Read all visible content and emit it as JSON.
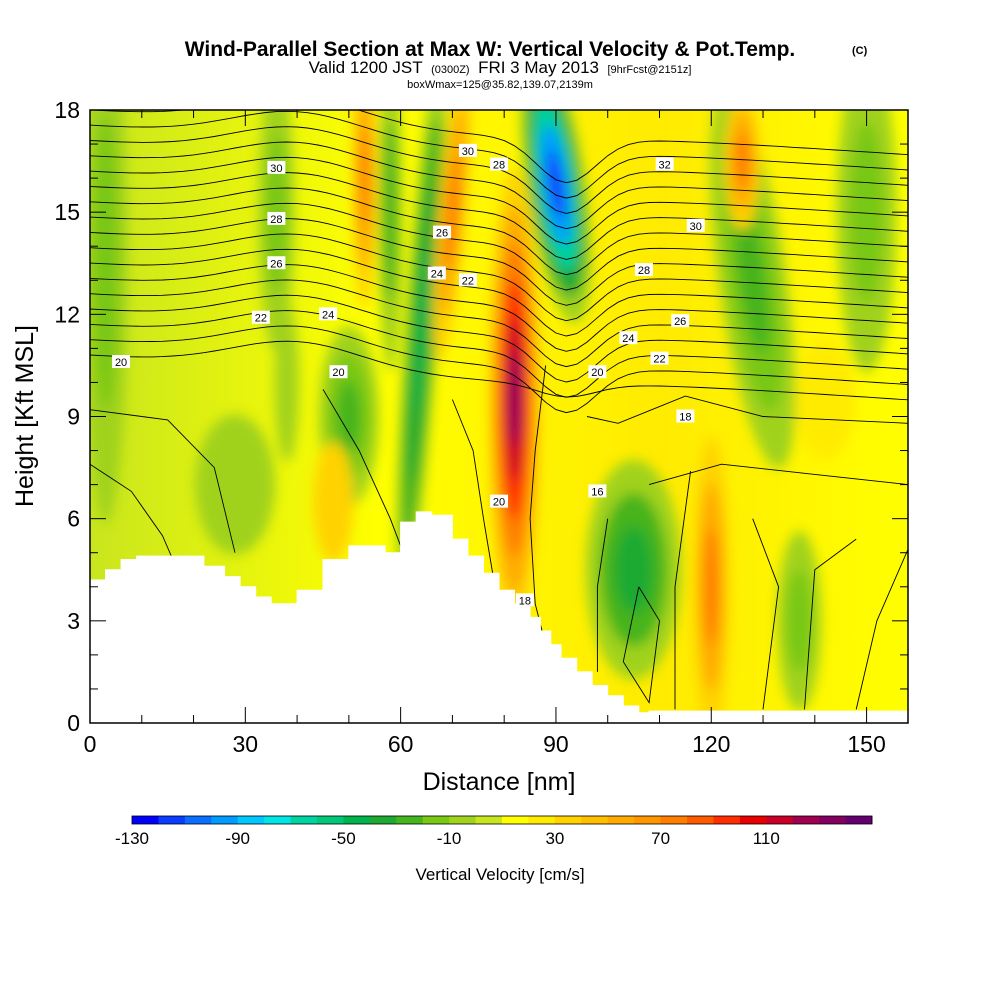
{
  "title": {
    "main": "Wind-Parallel Section at Max W: Vertical Velocity & Pot.Temp.",
    "copyright": "(C)",
    "valid_prefix": "Valid 1200 JST",
    "utc": "(0300Z)",
    "valid_date": "FRI 3 May 2013",
    "forecast": "[9hrFcst@2151z]",
    "box": "boxWmax=125@35.82,139.07,2139m"
  },
  "colorbar": {
    "label": "Vertical Velocity [cm/s]",
    "tick_labels": [
      "-130",
      "-90",
      "-50",
      "-10",
      "30",
      "70",
      "110"
    ],
    "colors": [
      "#0000ff",
      "#0a3cff",
      "#0a6eff",
      "#009bff",
      "#00c8ff",
      "#00e6e6",
      "#00d2a0",
      "#00c878",
      "#00b44b",
      "#1eaa32",
      "#46b41e",
      "#78c814",
      "#a0d21e",
      "#c8e61e",
      "#ffff00",
      "#ffeb00",
      "#ffd200",
      "#ffbe00",
      "#ffaa00",
      "#ff9600",
      "#ff7d00",
      "#ff5a00",
      "#ff2d00",
      "#e60000",
      "#c80028",
      "#a00050",
      "#82005f",
      "#64006e"
    ]
  },
  "chart_data": {
    "type": "heatmap",
    "title": "Wind-Parallel Section at Max W: Vertical Velocity & Pot.Temp.",
    "xlabel": "Distance [nm]",
    "ylabel": "Height [Kft MSL]",
    "xlim": [
      0,
      158
    ],
    "ylim": [
      0,
      18
    ],
    "xticks": [
      0,
      30,
      60,
      90,
      120,
      150
    ],
    "yticks": [
      0,
      3,
      6,
      9,
      12,
      15,
      18
    ],
    "fill_variable": "Vertical Velocity [cm/s]",
    "fill_range": [
      -130,
      150
    ],
    "fill_interval": 10,
    "contour_variable": "Potential Temperature",
    "terrain_profile": {
      "x": [
        0,
        3,
        6,
        9,
        15,
        22,
        26,
        29,
        32,
        35,
        40,
        45,
        50,
        55,
        57,
        60,
        63,
        66,
        70,
        73,
        76,
        79,
        82,
        85,
        87,
        89,
        91,
        94,
        97,
        100,
        103,
        106,
        108,
        114,
        120,
        130,
        140,
        150,
        158
      ],
      "height_kft": [
        4.2,
        4.5,
        4.8,
        4.9,
        4.9,
        4.6,
        4.3,
        4.0,
        3.7,
        3.5,
        3.9,
        4.8,
        5.2,
        5.2,
        5.0,
        5.9,
        6.2,
        6.1,
        5.4,
        4.9,
        4.4,
        3.9,
        3.5,
        3.1,
        2.7,
        2.3,
        1.9,
        1.5,
        1.1,
        0.8,
        0.5,
        0.3,
        0.35,
        0.35,
        0.35,
        0.35,
        0.35,
        0.35,
        0.35
      ]
    },
    "vertical_velocity_features": [
      {
        "x": 83,
        "y_kft": 9.5,
        "value": 130,
        "kind": "updraft core"
      },
      {
        "x": 90,
        "y_kft": 15.8,
        "value": -120,
        "kind": "downdraft core"
      },
      {
        "x": 117,
        "y_kft": 4.0,
        "value": 60,
        "kind": "updraft"
      },
      {
        "x": 126,
        "y_kft": 17.0,
        "value": 70,
        "kind": "updraft"
      },
      {
        "x": 66,
        "y_kft": 11.0,
        "value": -40,
        "kind": "downdraft"
      },
      {
        "x": 103,
        "y_kft": 5.0,
        "value": -40,
        "kind": "downdraft"
      }
    ],
    "contour_labels": [
      {
        "text": "30",
        "x": 36,
        "y_kft": 16.3
      },
      {
        "text": "28",
        "x": 36,
        "y_kft": 14.8
      },
      {
        "text": "26",
        "x": 36,
        "y_kft": 13.5
      },
      {
        "text": "22",
        "x": 33,
        "y_kft": 11.9
      },
      {
        "text": "24",
        "x": 46,
        "y_kft": 12.0
      },
      {
        "text": "20",
        "x": 6,
        "y_kft": 10.6
      },
      {
        "text": "20",
        "x": 48,
        "y_kft": 10.3
      },
      {
        "text": "30",
        "x": 73,
        "y_kft": 16.8
      },
      {
        "text": "28",
        "x": 79,
        "y_kft": 16.4
      },
      {
        "text": "26",
        "x": 68,
        "y_kft": 14.4
      },
      {
        "text": "24",
        "x": 67,
        "y_kft": 13.2
      },
      {
        "text": "22",
        "x": 73,
        "y_kft": 13.0
      },
      {
        "text": "32",
        "x": 111,
        "y_kft": 16.4
      },
      {
        "text": "30",
        "x": 117,
        "y_kft": 14.6
      },
      {
        "text": "28",
        "x": 107,
        "y_kft": 13.3
      },
      {
        "text": "26",
        "x": 114,
        "y_kft": 11.8
      },
      {
        "text": "24",
        "x": 104,
        "y_kft": 11.3
      },
      {
        "text": "22",
        "x": 110,
        "y_kft": 10.7
      },
      {
        "text": "20",
        "x": 98,
        "y_kft": 10.3
      },
      {
        "text": "18",
        "x": 115,
        "y_kft": 9.0
      },
      {
        "text": "16",
        "x": 98,
        "y_kft": 6.8
      },
      {
        "text": "20",
        "x": 79,
        "y_kft": 6.5
      },
      {
        "text": "18",
        "x": 84,
        "y_kft": 3.6
      }
    ]
  }
}
